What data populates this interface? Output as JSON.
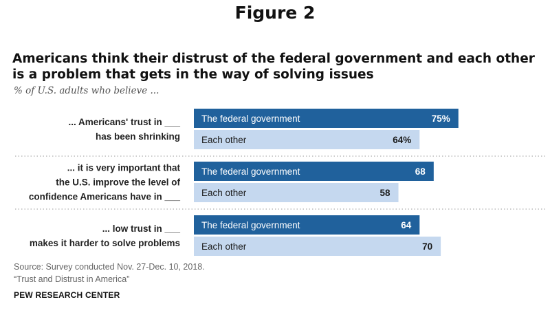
{
  "figure_label": "Figure 2",
  "colors": {
    "dark_bar": "#20619c",
    "light_bar": "#c5d8ef",
    "dark_bar_text": "#ffffff",
    "light_bar_text": "#1a1a1a",
    "divider": "#bbbbbb"
  },
  "chart_data": {
    "type": "bar",
    "orientation": "horizontal",
    "title": "Americans think their distrust of the federal government and each other is a problem that gets in the way of solving issues",
    "subtitle": "% of U.S. adults who believe ...",
    "series": [
      {
        "name": "The federal government"
      },
      {
        "name": "Each other"
      }
    ],
    "groups": [
      {
        "label_lines": [
          "... Americans' trust in ___",
          "has been shrinking"
        ],
        "bars": [
          {
            "series": "The federal government",
            "value": 75,
            "value_label": "75%"
          },
          {
            "series": "Each other",
            "value": 64,
            "value_label": "64%"
          }
        ]
      },
      {
        "label_lines": [
          "... it is very important that",
          "the U.S. improve the level of",
          "confidence Americans have in ___"
        ],
        "bars": [
          {
            "series": "The federal government",
            "value": 68,
            "value_label": "68"
          },
          {
            "series": "Each other",
            "value": 58,
            "value_label": "58"
          }
        ]
      },
      {
        "label_lines": [
          "... low trust in ___",
          "makes it harder to solve problems"
        ],
        "bars": [
          {
            "series": "The federal government",
            "value": 64,
            "value_label": "64"
          },
          {
            "series": "Each other",
            "value": 70,
            "value_label": "70"
          }
        ]
      }
    ],
    "xlim": [
      0,
      100
    ],
    "grid": false,
    "legend": "none"
  },
  "source": {
    "line1": "Source: Survey conducted Nov. 27-Dec. 10, 2018.",
    "line2": "“Trust and Distrust in America”"
  },
  "credit": "PEW RESEARCH CENTER"
}
